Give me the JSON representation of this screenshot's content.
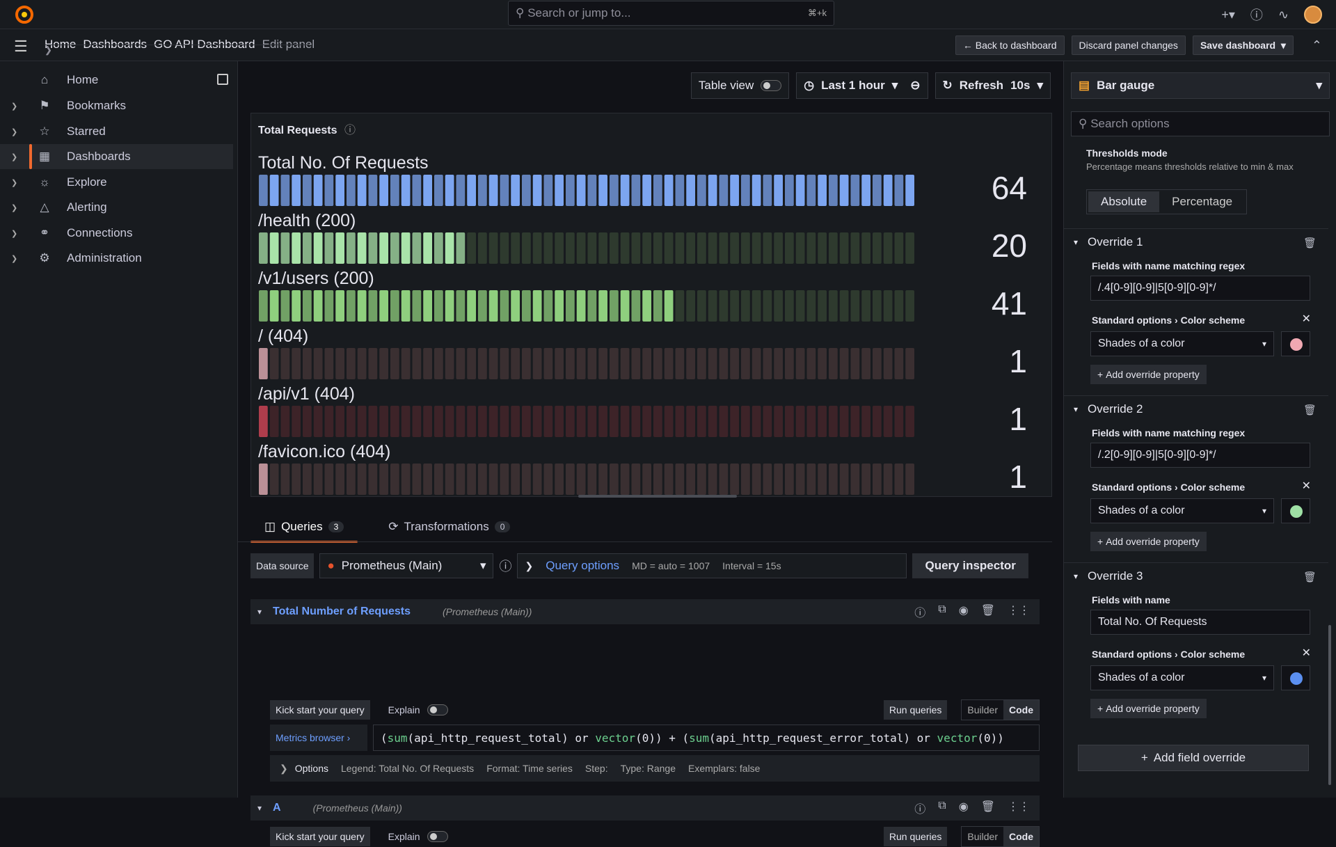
{
  "topbar": {
    "search_placeholder": "Search or jump to...",
    "search_shortcut": "⌘+k"
  },
  "breadcrumb": [
    "Home",
    "Dashboards",
    "GO API Dashboard",
    "Edit panel"
  ],
  "actions": {
    "back": "Back to dashboard",
    "discard": "Discard panel changes",
    "save": "Save dashboard"
  },
  "sidebar": {
    "items": [
      {
        "label": "Home"
      },
      {
        "label": "Bookmarks"
      },
      {
        "label": "Starred"
      },
      {
        "label": "Dashboards"
      },
      {
        "label": "Explore"
      },
      {
        "label": "Alerting"
      },
      {
        "label": "Connections"
      },
      {
        "label": "Administration"
      }
    ]
  },
  "toolbar": {
    "table_view": "Table view",
    "time_range": "Last 1 hour",
    "refresh": "Refresh",
    "interval": "10s"
  },
  "panel": {
    "title": "Total Requests",
    "gauges": [
      {
        "label": "Total No. Of Requests",
        "value": "64",
        "fill": 1.0,
        "color": "#7ca5f0",
        "dim": "#2e3a55"
      },
      {
        "label": "/health (200)",
        "value": "20",
        "fill": 0.3125,
        "color": "#a9e3a9",
        "dim": "#2e3a2e"
      },
      {
        "label": "/v1/users (200)",
        "value": "41",
        "fill": 0.64,
        "color": "#8fcf7e",
        "dim": "#2e3a2e"
      },
      {
        "label": "/ (404)",
        "value": "1",
        "fill": 0.0156,
        "color": "#f0b8c0",
        "dim": "#3a2f31"
      },
      {
        "label": "/api/v1 (404)",
        "value": "1",
        "fill": 0.0156,
        "color": "#e0495c",
        "dim": "#3d2328"
      },
      {
        "label": "/favicon.ico (404)",
        "value": "1",
        "fill": 0.0156,
        "color": "#f0b8c0",
        "dim": "#3a2f31"
      }
    ]
  },
  "tabs": {
    "queries": "Queries",
    "queries_count": "3",
    "transformations": "Transformations",
    "transformations_count": "0"
  },
  "query": {
    "ds_label": "Data source",
    "ds_value": "Prometheus (Main)",
    "query_options": "Query options",
    "md": "MD = auto = 1007",
    "interval": "Interval = 15s",
    "inspector": "Query inspector",
    "q1_name": "Total Number of Requests",
    "q1_src": "(Prometheus (Main))",
    "kick": "Kick start your query",
    "explain": "Explain",
    "run": "Run queries",
    "builder": "Builder",
    "code": "Code",
    "metrics": "Metrics browser",
    "options": "Options",
    "legend": "Legend: Total No. Of Requests",
    "format": "Format: Time series",
    "step": "Step:",
    "type": "Type: Range",
    "exemplars": "Exemplars: false",
    "q2_name": "A",
    "q2_src": "(Prometheus (Main))"
  },
  "options_pane": {
    "viz": "Bar gauge",
    "search": "Search options",
    "thresholds_mode": "Thresholds mode",
    "thresholds_desc": "Percentage means thresholds relative to min & max",
    "absolute": "Absolute",
    "percentage": "Percentage",
    "overrides": [
      {
        "title": "Override 1",
        "field_label": "Fields with name matching regex",
        "field_value": "/.4[0-9][0-9]|5[0-9][0-9]*/",
        "std": "Standard options",
        "cs": "Color scheme",
        "scheme": "Shades of a color",
        "color": "#f0a8b2",
        "add": "Add override property"
      },
      {
        "title": "Override 2",
        "field_label": "Fields with name matching regex",
        "field_value": "/.2[0-9][0-9]|5[0-9][0-9]*/",
        "std": "Standard options",
        "cs": "Color scheme",
        "scheme": "Shades of a color",
        "color": "#9fe0a5",
        "add": "Add override property"
      },
      {
        "title": "Override 3",
        "field_label": "Fields with name",
        "field_value": "Total No. Of Requests",
        "std": "Standard options",
        "cs": "Color scheme",
        "scheme": "Shades of a color",
        "color": "#5b8ff0",
        "add": "Add override property"
      }
    ],
    "add_field_override": "Add field override"
  }
}
